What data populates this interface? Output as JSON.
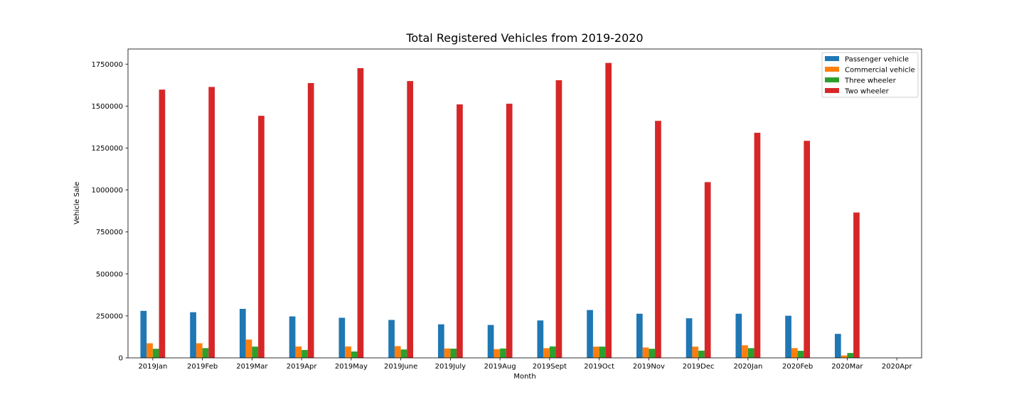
{
  "chart_data": {
    "type": "bar",
    "title": "Total Registered Vehicles from 2019-2020",
    "xlabel": "Month",
    "ylabel": "Vehicle Sale",
    "ylim": [
      0,
      1840000
    ],
    "yticks": [
      0,
      250000,
      500000,
      750000,
      1000000,
      1250000,
      1500000,
      1750000
    ],
    "ytick_labels": [
      "0",
      "250000",
      "500000",
      "750000",
      "1000000",
      "1250000",
      "1500000",
      "1750000"
    ],
    "grid": false,
    "legend_position": "top-right",
    "categories": [
      "2019Jan",
      "2019Feb",
      "2019Mar",
      "2019Apr",
      "2019May",
      "2019June",
      "2019July",
      "2019Aug",
      "2019Sept",
      "2019Oct",
      "2019Nov",
      "2019Dec",
      "2020Jan",
      "2020Feb",
      "2020Mar",
      "2020Apr"
    ],
    "series": [
      {
        "name": "Passenger vehicle",
        "color": "#1f77b4",
        "values": [
          280000,
          272000,
          292000,
          247000,
          239000,
          226000,
          200000,
          196000,
          223000,
          285000,
          263000,
          236000,
          263000,
          251000,
          143000,
          0
        ]
      },
      {
        "name": "Commercial vehicle",
        "color": "#ff7f0e",
        "values": [
          87000,
          87000,
          109000,
          68000,
          68000,
          70000,
          56000,
          52000,
          58000,
          67000,
          62000,
          67000,
          75000,
          58000,
          14000,
          0
        ]
      },
      {
        "name": "Three wheeler",
        "color": "#2ca02c",
        "values": [
          54000,
          58000,
          67000,
          47000,
          38000,
          50000,
          55000,
          56000,
          68000,
          67000,
          54000,
          43000,
          58000,
          42000,
          29000,
          0
        ]
      },
      {
        "name": "Two wheeler",
        "color": "#d62728",
        "values": [
          1598000,
          1614000,
          1442000,
          1637000,
          1726000,
          1649000,
          1510000,
          1514000,
          1654000,
          1757000,
          1412000,
          1047000,
          1341000,
          1293000,
          866000,
          0
        ]
      }
    ]
  }
}
